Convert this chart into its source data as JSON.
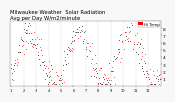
{
  "title": "Milwaukee Weather  Solar Radiation\nAvg per Day W/m2/minute",
  "title_fontsize": 3.8,
  "background_color": "#f8f8f8",
  "plot_bg_color": "#ffffff",
  "grid_color": "#bbbbbb",
  "ylim": [
    0,
    9
  ],
  "yticks": [
    1,
    2,
    3,
    4,
    5,
    6,
    7,
    8
  ],
  "ytick_fontsize": 3.2,
  "xtick_fontsize": 2.5,
  "n_points": 156,
  "legend_color": "#ff0000",
  "dot_color_red": "#ff0000",
  "dot_color_black": "#000000",
  "grid_interval": 13,
  "markersize": 1.0
}
